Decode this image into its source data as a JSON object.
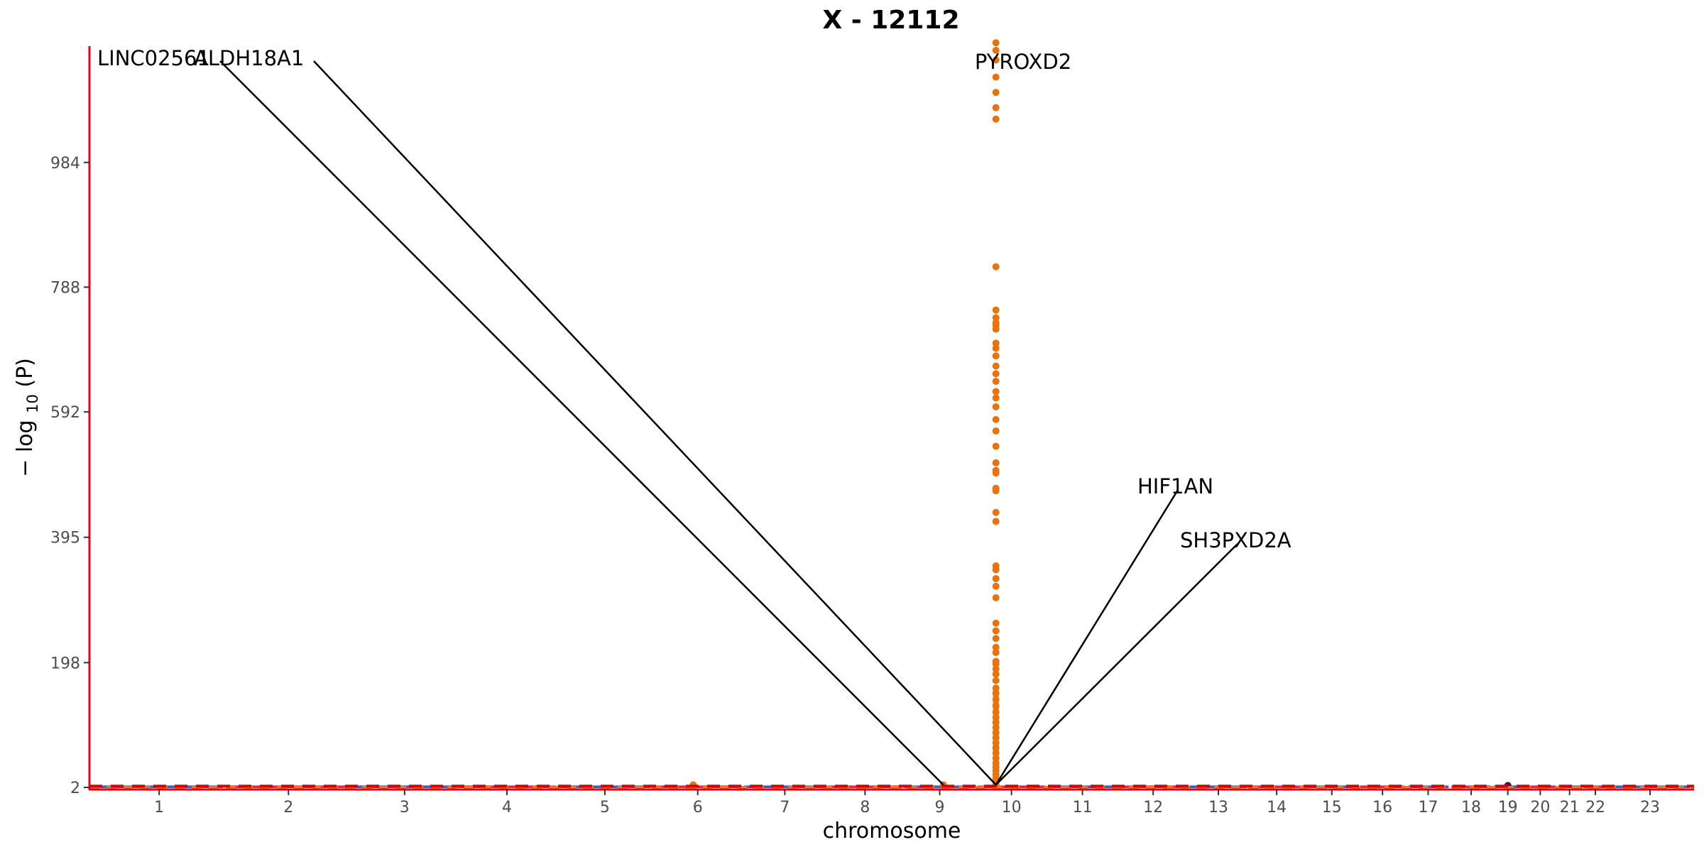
{
  "chart_data": {
    "type": "scatter",
    "title": "X - 12112",
    "xlabel": "chromosome",
    "ylabel_prefix": "− log",
    "ylabel_sub": "10",
    "ylabel_suffix": "(P)",
    "ylim": [
      2,
      1160
    ],
    "y_ticks": [
      2,
      198,
      395,
      592,
      788,
      984
    ],
    "chromosomes": [
      "1",
      "2",
      "3",
      "4",
      "5",
      "6",
      "7",
      "8",
      "9",
      "10",
      "11",
      "12",
      "13",
      "14",
      "15",
      "16",
      "17",
      "18",
      "19",
      "20",
      "21",
      "22",
      "23"
    ],
    "chrom_sizes": [
      248,
      242,
      198,
      190,
      181,
      171,
      159,
      145,
      138,
      134,
      135,
      133,
      114,
      107,
      102,
      90,
      83,
      80,
      59,
      64,
      47,
      51,
      156
    ],
    "chrom_colors": [
      "#1f3fbf",
      "#e0002c"
    ],
    "baseline_thresholds": [
      {
        "value": 2,
        "color": "#e08000",
        "dash": "14,10"
      },
      {
        "value": 4,
        "color": "#d40000",
        "dash": "18,12"
      }
    ],
    "highlight_color": "#e8730e",
    "peak": {
      "chromosome": "10",
      "position": 0.28,
      "values": [
        1172,
        1160,
        1145,
        1118,
        1094,
        1070,
        1052,
        820,
        752,
        740,
        732,
        728,
        722,
        700,
        692,
        680,
        664,
        652,
        640,
        624,
        614,
        600,
        580,
        562,
        538,
        512,
        500,
        496,
        472,
        468,
        434,
        420,
        350,
        344,
        330,
        318,
        300,
        260,
        248,
        236,
        222,
        214,
        200,
        196,
        188,
        180,
        170,
        158,
        150,
        140,
        130,
        120,
        112,
        104,
        96,
        88,
        80,
        72,
        64,
        56,
        48,
        40,
        34,
        28,
        22,
        16,
        10,
        6
      ]
    },
    "other_points": [
      {
        "chromosome": "9",
        "position": 0.55,
        "value": 6,
        "color": "#e8730e"
      },
      {
        "chromosome": "6",
        "position": 0.45,
        "value": 6,
        "color": "#e8730e"
      },
      {
        "chromosome": "19",
        "position": 0.5,
        "value": 5,
        "color": "#6a0a3a"
      }
    ],
    "annotations": [
      {
        "label": "LINC02561",
        "text_y": 1148,
        "chromosome": "9",
        "position": 0.55,
        "value": 6
      },
      {
        "label": "ALDH18A1",
        "text_y": 1148,
        "chromosome": "10",
        "position": 0.28,
        "value": 6
      },
      {
        "label": "PYROXD2",
        "text_y": 1142,
        "chromosome": "10",
        "position": 0.28,
        "value": 1172
      },
      {
        "label": "HIF1AN",
        "text_y": 475,
        "chromosome": "10",
        "position": 0.28,
        "value": 6
      },
      {
        "label": "SH3PXD2A",
        "text_y": 390,
        "chromosome": "10",
        "position": 0.28,
        "value": 6
      }
    ],
    "grid": false,
    "legend": "none"
  }
}
